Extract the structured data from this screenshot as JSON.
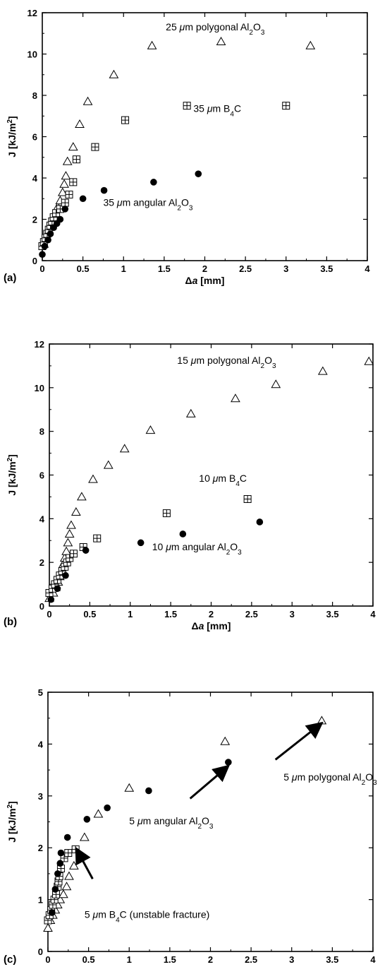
{
  "chart_data": [
    {
      "type": "scatter",
      "panel_label": "(a)",
      "xlabel": "Δa [mm]",
      "ylabel": "J [kJ/m²]",
      "xlim": [
        0,
        4
      ],
      "ylim": [
        0,
        12
      ],
      "xticks": [
        0,
        0.5,
        1,
        1.5,
        2,
        2.5,
        3,
        3.5,
        4
      ],
      "xtick_labels": [
        "0",
        "0.5",
        "1",
        "1.5",
        "2",
        "2.5",
        "3",
        "3.5",
        "4"
      ],
      "yticks": [
        0,
        2,
        4,
        6,
        8,
        10,
        12
      ],
      "ytick_labels": [
        "0",
        "2",
        "4",
        "6",
        "8",
        "10",
        "12"
      ],
      "series": [
        {
          "marker": "triangle",
          "points": [
            [
              0.02,
              0.8
            ],
            [
              0.05,
              1.1
            ],
            [
              0.08,
              1.4
            ],
            [
              0.1,
              1.7
            ],
            [
              0.13,
              2.0
            ],
            [
              0.16,
              2.3
            ],
            [
              0.19,
              2.6
            ],
            [
              0.22,
              2.9
            ],
            [
              0.25,
              3.3
            ],
            [
              0.27,
              3.7
            ],
            [
              0.29,
              4.1
            ],
            [
              0.31,
              4.8
            ],
            [
              0.38,
              5.5
            ],
            [
              0.46,
              6.6
            ],
            [
              0.56,
              7.7
            ],
            [
              0.88,
              9.0
            ],
            [
              1.35,
              10.4
            ],
            [
              2.2,
              10.6
            ],
            [
              3.3,
              10.4
            ]
          ]
        },
        {
          "marker": "boxplus",
          "points": [
            [
              0.0,
              0.7
            ],
            [
              0.02,
              0.9
            ],
            [
              0.04,
              1.1
            ],
            [
              0.06,
              1.3
            ],
            [
              0.08,
              1.5
            ],
            [
              0.1,
              1.7
            ],
            [
              0.12,
              1.9
            ],
            [
              0.14,
              2.1
            ],
            [
              0.17,
              2.3
            ],
            [
              0.22,
              2.5
            ],
            [
              0.28,
              2.8
            ],
            [
              0.33,
              3.2
            ],
            [
              0.38,
              3.8
            ],
            [
              0.42,
              4.9
            ],
            [
              0.65,
              5.5
            ],
            [
              1.02,
              6.8
            ],
            [
              1.78,
              7.5
            ],
            [
              3.0,
              7.5
            ]
          ]
        },
        {
          "marker": "circle",
          "points": [
            [
              0.0,
              0.3
            ],
            [
              0.03,
              0.7
            ],
            [
              0.07,
              1.0
            ],
            [
              0.1,
              1.3
            ],
            [
              0.14,
              1.6
            ],
            [
              0.18,
              1.8
            ],
            [
              0.22,
              2.0
            ],
            [
              0.28,
              2.5
            ],
            [
              0.5,
              3.0
            ],
            [
              0.76,
              3.4
            ],
            [
              1.37,
              3.8
            ],
            [
              1.92,
              4.2
            ]
          ]
        }
      ],
      "annotations": [
        {
          "text": "25 μm polygonal Al₂O₃",
          "x": 1.52,
          "y": 11.15
        },
        {
          "text": "35 μm B₄C",
          "x": 1.86,
          "y": 7.2
        },
        {
          "text": "35 μm angular Al₂O₃",
          "x": 0.75,
          "y": 2.65
        }
      ],
      "arrows": []
    },
    {
      "type": "scatter",
      "panel_label": "(b)",
      "xlabel": "Δa [mm]",
      "ylabel": "J [kJ/m²]",
      "xlim": [
        0,
        4
      ],
      "ylim": [
        0,
        12
      ],
      "xticks": [
        0,
        0.5,
        1,
        1.5,
        2,
        2.5,
        3,
        3.5,
        4
      ],
      "xtick_labels": [
        "0",
        "0.5",
        "1",
        "1.5",
        "2",
        "2.5",
        "3",
        "3.5",
        "4"
      ],
      "yticks": [
        0,
        2,
        4,
        6,
        8,
        10,
        12
      ],
      "ytick_labels": [
        "0",
        "2",
        "4",
        "6",
        "8",
        "10",
        "12"
      ],
      "series": [
        {
          "marker": "triangle",
          "points": [
            [
              0.0,
              0.35
            ],
            [
              0.05,
              0.6
            ],
            [
              0.08,
              0.85
            ],
            [
              0.11,
              1.1
            ],
            [
              0.13,
              1.35
            ],
            [
              0.15,
              1.6
            ],
            [
              0.17,
              1.9
            ],
            [
              0.19,
              2.2
            ],
            [
              0.21,
              2.5
            ],
            [
              0.23,
              2.9
            ],
            [
              0.25,
              3.3
            ],
            [
              0.27,
              3.7
            ],
            [
              0.33,
              4.3
            ],
            [
              0.4,
              5.0
            ],
            [
              0.54,
              5.8
            ],
            [
              0.73,
              6.45
            ],
            [
              0.93,
              7.2
            ],
            [
              1.25,
              8.05
            ],
            [
              1.75,
              8.8
            ],
            [
              2.3,
              9.5
            ],
            [
              2.8,
              10.15
            ],
            [
              3.38,
              10.75
            ],
            [
              3.95,
              11.2
            ]
          ]
        },
        {
          "marker": "boxplus",
          "points": [
            [
              0.0,
              0.6
            ],
            [
              0.04,
              0.8
            ],
            [
              0.07,
              1.0
            ],
            [
              0.1,
              1.2
            ],
            [
              0.13,
              1.4
            ],
            [
              0.16,
              1.6
            ],
            [
              0.19,
              1.8
            ],
            [
              0.22,
              2.0
            ],
            [
              0.25,
              2.2
            ],
            [
              0.3,
              2.4
            ],
            [
              0.42,
              2.7
            ],
            [
              0.59,
              3.1
            ],
            [
              1.45,
              4.25
            ],
            [
              2.45,
              4.9
            ]
          ]
        },
        {
          "marker": "circle",
          "points": [
            [
              0.02,
              0.3
            ],
            [
              0.1,
              0.8
            ],
            [
              0.2,
              1.4
            ],
            [
              0.45,
              2.55
            ],
            [
              1.13,
              2.9
            ],
            [
              1.65,
              3.3
            ],
            [
              2.6,
              3.85
            ]
          ]
        }
      ],
      "annotations": [
        {
          "text": "15 μm polygonal Al₂O₃",
          "x": 1.58,
          "y": 11.1
        },
        {
          "text": "10 μm B₄C",
          "x": 1.85,
          "y": 5.7
        },
        {
          "text": "10 μm angular Al₂O₃",
          "x": 1.27,
          "y": 2.55
        }
      ],
      "arrows": []
    },
    {
      "type": "scatter",
      "panel_label": "(c)",
      "xlabel": "Δa [mm]",
      "ylabel": "J [kJ/m²]",
      "xlim": [
        0,
        4
      ],
      "ylim": [
        0,
        5
      ],
      "xticks": [
        0,
        0.5,
        1,
        1.5,
        2,
        2.5,
        3,
        3.5,
        4
      ],
      "xtick_labels": [
        "0",
        "0.5",
        "1",
        "1.5",
        "2",
        "2.5",
        "3",
        "3.5",
        "4"
      ],
      "yticks": [
        0,
        1,
        2,
        3,
        4,
        5
      ],
      "ytick_labels": [
        "0",
        "1",
        "2",
        "3",
        "4",
        "5"
      ],
      "series": [
        {
          "marker": "triangle",
          "points": [
            [
              0.0,
              0.45
            ],
            [
              0.03,
              0.6
            ],
            [
              0.06,
              0.7
            ],
            [
              0.09,
              0.8
            ],
            [
              0.12,
              0.9
            ],
            [
              0.15,
              1.0
            ],
            [
              0.19,
              1.1
            ],
            [
              0.23,
              1.25
            ],
            [
              0.26,
              1.45
            ],
            [
              0.32,
              1.65
            ],
            [
              0.45,
              2.2
            ],
            [
              0.62,
              2.65
            ],
            [
              1.0,
              3.15
            ],
            [
              2.18,
              4.05
            ],
            [
              3.37,
              4.45
            ]
          ]
        },
        {
          "marker": "boxplus",
          "points": [
            [
              0.0,
              0.6
            ],
            [
              0.02,
              0.7
            ],
            [
              0.04,
              0.8
            ],
            [
              0.06,
              0.9
            ],
            [
              0.08,
              1.0
            ],
            [
              0.1,
              1.1
            ],
            [
              0.12,
              1.25
            ],
            [
              0.13,
              1.35
            ],
            [
              0.14,
              1.45
            ],
            [
              0.16,
              1.6
            ],
            [
              0.2,
              1.8
            ],
            [
              0.25,
              1.9
            ],
            [
              0.34,
              1.97
            ]
          ]
        },
        {
          "marker": "circle",
          "points": [
            [
              0.05,
              0.75
            ],
            [
              0.09,
              1.2
            ],
            [
              0.12,
              1.5
            ],
            [
              0.15,
              1.7
            ],
            [
              0.16,
              1.9
            ],
            [
              0.24,
              2.2
            ],
            [
              0.48,
              2.55
            ],
            [
              0.73,
              2.77
            ],
            [
              1.24,
              3.1
            ],
            [
              2.22,
              3.65
            ]
          ]
        }
      ],
      "annotations": [
        {
          "text": "5 μm polygonal Al₂O₃",
          "x": 2.9,
          "y": 3.3
        },
        {
          "text": "5 μm angular Al₂O₃",
          "x": 1.0,
          "y": 2.45
        },
        {
          "text": "5 μm B₄C (unstable fracture)",
          "x": 0.45,
          "y": 0.65
        }
      ],
      "arrows": [
        {
          "from": [
            2.8,
            3.7
          ],
          "to": [
            3.35,
            4.38
          ]
        },
        {
          "from": [
            1.75,
            2.95
          ],
          "to": [
            2.2,
            3.55
          ]
        },
        {
          "from": [
            0.55,
            1.4
          ],
          "to": [
            0.36,
            1.95
          ]
        }
      ]
    }
  ]
}
